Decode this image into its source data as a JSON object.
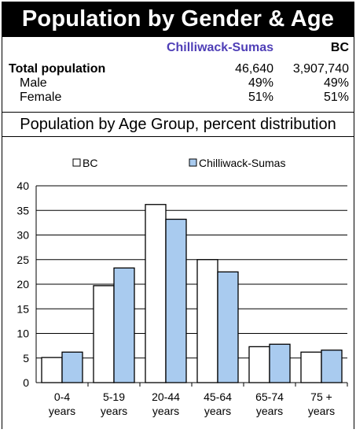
{
  "header": {
    "title": "Population by Gender & Age"
  },
  "stats": {
    "col1_header": "Chilliwack-Sumas",
    "col2_header": "BC",
    "rows": [
      {
        "label": "Total population",
        "v1": "46,640",
        "v2": "3,907,740"
      },
      {
        "label": "Male",
        "v1": "49%",
        "v2": "49%"
      },
      {
        "label": "Female",
        "v1": "51%",
        "v2": "51%"
      }
    ]
  },
  "subtitle": "Population by Age Group, percent distribution",
  "colors": {
    "bc": "#ffffff",
    "cw": "#a9cbef",
    "accent": "#4f3fb7"
  },
  "chart_data": {
    "type": "bar",
    "categories": [
      [
        "0-4",
        "years"
      ],
      [
        "5-19",
        "years"
      ],
      [
        "20-44",
        "years"
      ],
      [
        "45-64",
        "years"
      ],
      [
        "65-74",
        "years"
      ],
      [
        "75 +",
        "years"
      ]
    ],
    "series": [
      {
        "name": "BC",
        "values": [
          5.1,
          19.7,
          36.2,
          25.0,
          7.3,
          6.2
        ]
      },
      {
        "name": "Chilliwack-Sumas",
        "values": [
          6.2,
          23.3,
          33.2,
          22.5,
          7.8,
          6.6
        ]
      }
    ],
    "ylim": [
      0,
      40
    ],
    "yticks": [
      0,
      5,
      10,
      15,
      20,
      25,
      30,
      35,
      40
    ],
    "grid": true,
    "legend": "top"
  }
}
